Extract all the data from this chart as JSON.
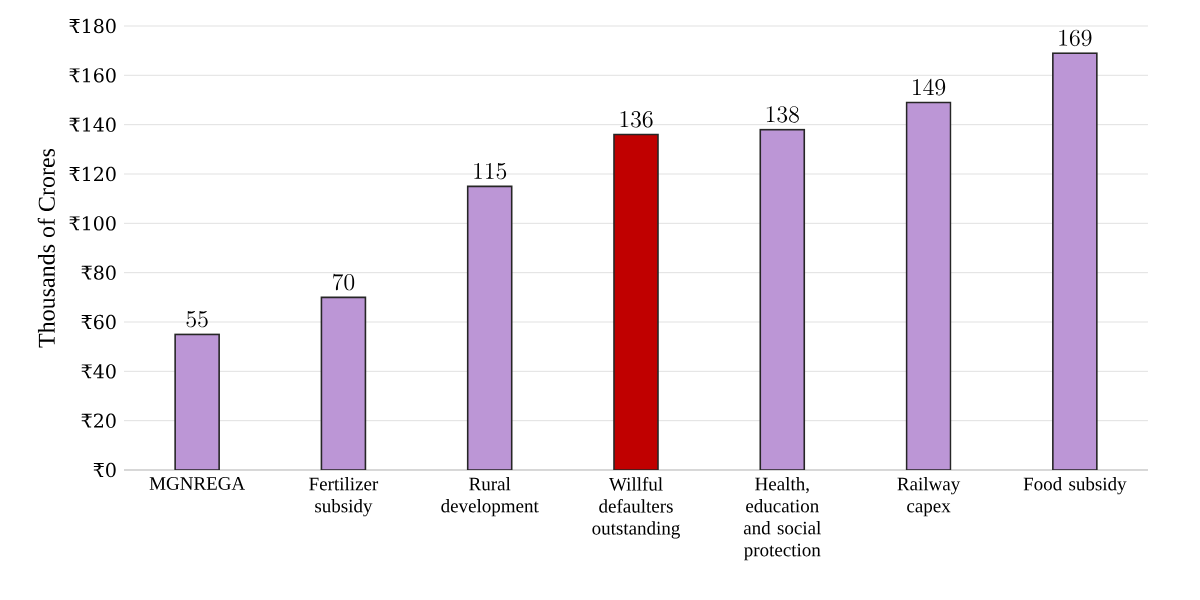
{
  "chart_data": {
    "type": "bar",
    "ylabel": "Thousands of Crores",
    "categories": [
      "MGNREGA",
      "Fertilizer subsidy",
      "Rural development",
      "Willful defaulters outstanding",
      "Health, education and social protection",
      "Railway capex",
      "Food subsidy"
    ],
    "values": [
      55,
      70,
      115,
      136,
      138,
      149,
      169
    ],
    "colors": [
      "#bc96d6",
      "#bc96d6",
      "#bc96d6",
      "#c00000",
      "#bc96d6",
      "#bc96d6",
      "#bc96d6"
    ],
    "ylim": [
      0,
      180
    ],
    "yticks": [
      {
        "value": 0,
        "label": "₹0"
      },
      {
        "value": 20,
        "label": "₹20"
      },
      {
        "value": 40,
        "label": "₹40"
      },
      {
        "value": 60,
        "label": "₹60"
      },
      {
        "value": 80,
        "label": "₹80"
      },
      {
        "value": 100,
        "label": "₹100"
      },
      {
        "value": 120,
        "label": "₹120"
      },
      {
        "value": 140,
        "label": "₹140"
      },
      {
        "value": 160,
        "label": "₹160"
      },
      {
        "value": 180,
        "label": "₹180"
      }
    ],
    "grid": "y",
    "data_labels": true
  }
}
